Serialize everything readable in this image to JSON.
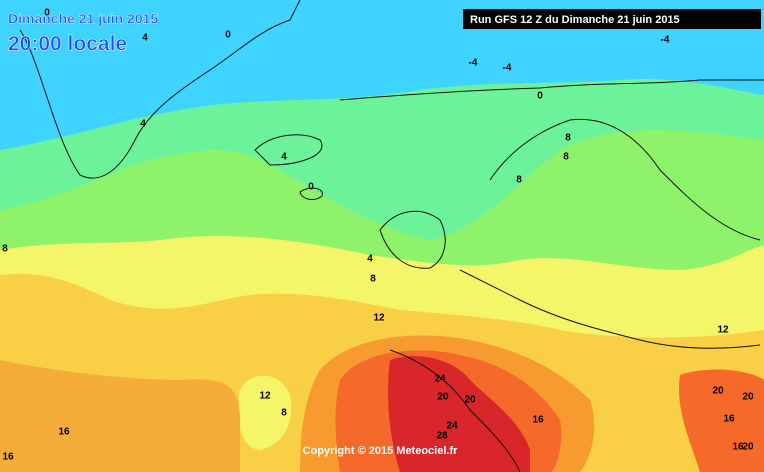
{
  "header": {
    "day": "Dimanche 21 juin 2015",
    "time": "20:00 locale"
  },
  "run_label": "Run GFS 12 Z du Dimanche 21 juin 2015",
  "copyright": "Copyright © 2015 Meteociel.fr",
  "contour_labels": [
    0,
    4,
    0,
    -4,
    -4,
    -4,
    0,
    4,
    4,
    0,
    8,
    8,
    8,
    8,
    4,
    8,
    12,
    12,
    24,
    20,
    20,
    12,
    8,
    16,
    16,
    24,
    28,
    16,
    20,
    20,
    16,
    16,
    20
  ]
}
